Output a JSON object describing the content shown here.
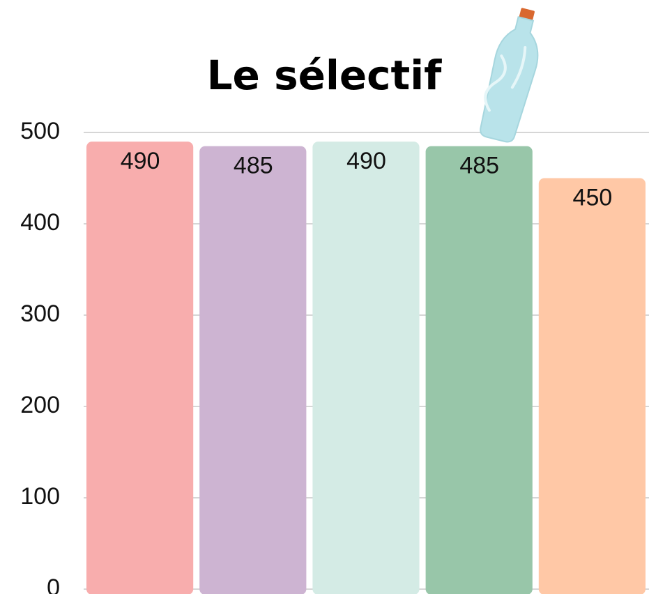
{
  "chart_data": {
    "type": "bar",
    "title": "Le sélectif",
    "categories": [
      null,
      null,
      null,
      null,
      null
    ],
    "values": [
      490,
      485,
      490,
      485,
      450
    ],
    "colors": [
      "#f8adad",
      "#cdb4d2",
      "#d4ebe5",
      "#98c6a9",
      "#ffc8a6"
    ],
    "ylim": [
      0,
      500
    ],
    "yticks": [
      0,
      100,
      200,
      300,
      400,
      500
    ],
    "grid": true
  }
}
